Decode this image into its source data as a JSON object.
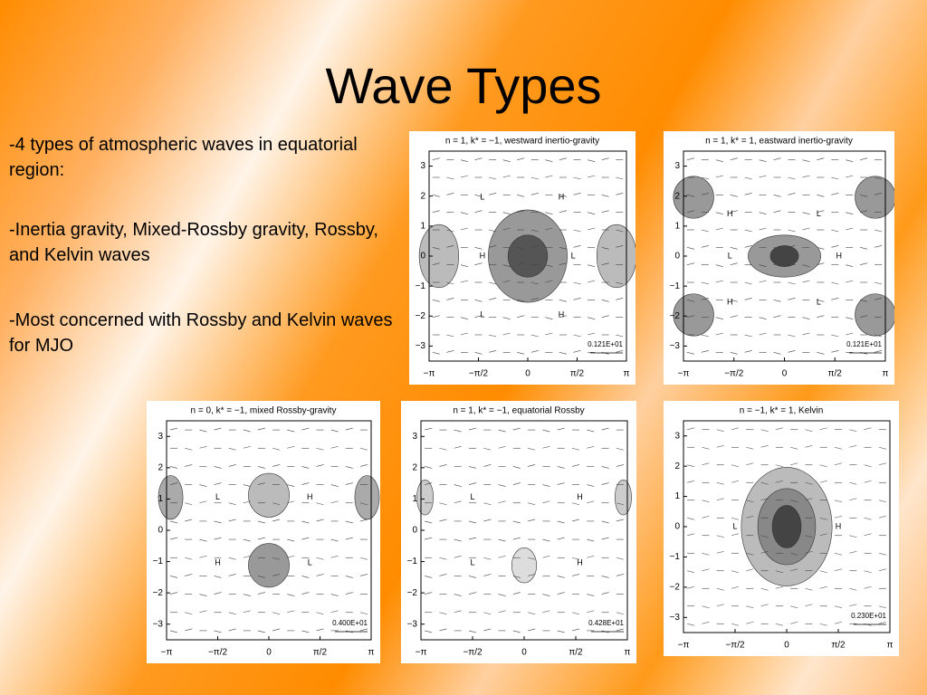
{
  "title": "Wave Types",
  "bullets": [
    "-4 types of atmospheric waves in equatorial region:",
    "-Inertia gravity, Mixed-Rossby gravity, Rossby, and Kelvin waves",
    "-Most concerned with Rossby and Kelvin waves for MJO"
  ],
  "axes": {
    "yticks": [
      "3",
      "2",
      "1",
      "0",
      "−1",
      "−2",
      "−3"
    ],
    "xticks": [
      "−π",
      "−π/2",
      "0",
      "π/2",
      "π"
    ]
  },
  "panels": [
    {
      "title": "n = 1, k* = −1, westward inertio-gravity",
      "scale": "0.121E+01",
      "labels": [
        "L",
        "H",
        "H",
        "L",
        "L",
        "H"
      ]
    },
    {
      "title": "n = 1, k* = 1, eastward inertio-gravity",
      "scale": "0.121E+01",
      "labels": [
        "H",
        "L",
        "L",
        "H",
        "H",
        "L"
      ]
    },
    {
      "title": "n = 0, k* = −1, mixed Rossby-gravity",
      "scale": "0.400E+01",
      "labels": [
        "L",
        "H",
        "H",
        "L"
      ]
    },
    {
      "title": "n = 1, k* = −1, equatorial Rossby",
      "scale": "0.428E+01",
      "labels": [
        "L",
        "H",
        "L",
        "H"
      ]
    },
    {
      "title": "n = −1, k* = 1, Kelvin",
      "scale": "0.230E+01",
      "labels": [
        "L",
        "H"
      ]
    }
  ]
}
